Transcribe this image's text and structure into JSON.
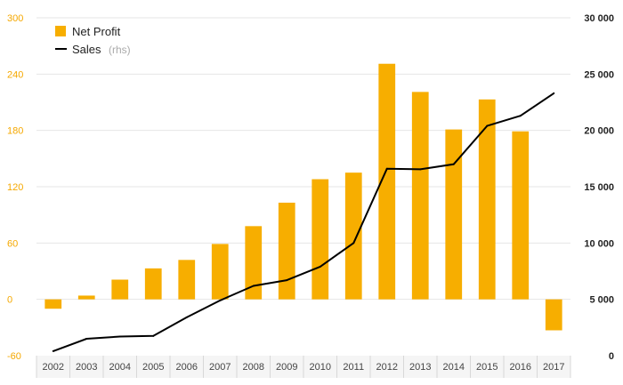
{
  "chart_data": {
    "type": "bar",
    "categories": [
      "2002",
      "2003",
      "2004",
      "2005",
      "2006",
      "2007",
      "2008",
      "2009",
      "2010",
      "2011",
      "2012",
      "2013",
      "2014",
      "2015",
      "2016",
      "2017"
    ],
    "series": [
      {
        "name": "Net Profit",
        "type": "bar",
        "axis": "left",
        "color": "#f7ae00",
        "values": [
          -10,
          4,
          21,
          33,
          42,
          59,
          78,
          103,
          128,
          135,
          251,
          221,
          181,
          213,
          179,
          -33
        ]
      },
      {
        "name": "Sales",
        "type": "line",
        "axis": "right",
        "color": "#000000",
        "values": [
          400,
          1500,
          1700,
          1750,
          3400,
          4900,
          6200,
          6700,
          7900,
          10000,
          16600,
          16550,
          17000,
          20400,
          21300,
          23300
        ]
      }
    ],
    "left_axis": {
      "ylim": [
        -60,
        300
      ],
      "ticks": [
        -60,
        0,
        60,
        120,
        180,
        240,
        300
      ],
      "tick_labels": [
        "-60",
        "0",
        "60",
        "120",
        "180",
        "240",
        "300"
      ],
      "color": "#f5a800"
    },
    "right_axis": {
      "ylim": [
        0,
        30000
      ],
      "ticks": [
        0,
        5000,
        10000,
        15000,
        20000,
        25000,
        30000
      ],
      "tick_labels": [
        "0",
        "5 000",
        "10 000",
        "15 000",
        "20 000",
        "25 000",
        "30 000"
      ]
    },
    "legend": {
      "placement": "top-left",
      "items": [
        {
          "label": "Net Profit",
          "suffix": ""
        },
        {
          "label": "Sales",
          "suffix": "(rhs)"
        }
      ]
    },
    "grid": true,
    "title": "",
    "xlabel": "",
    "ylabel": ""
  }
}
